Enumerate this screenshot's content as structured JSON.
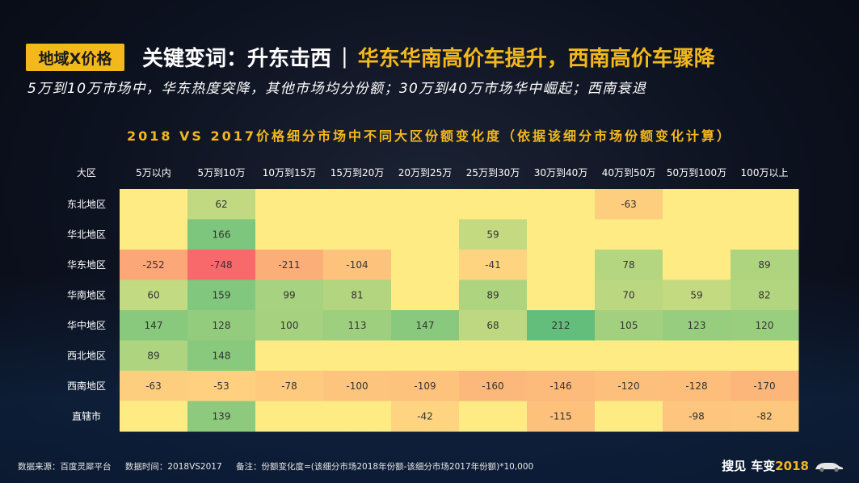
{
  "header": {
    "tag": "地域X价格",
    "keyword": "关键变词：升东击西",
    "divider": "|",
    "subtitle_highlight": "华东华南高价车提升，西南高价车骤降",
    "summary": "5万到10万市场中，华东热度突降，其他市场均分份额；30万到40万市场华中崛起；西南衰退"
  },
  "chart_data": {
    "type": "heatmap",
    "title": "2018 VS 2017价格细分市场中不同大区份额变化度（依据该细分市场份额变化计算）",
    "corner_label": "大区",
    "columns": [
      "5万以内",
      "5万到10万",
      "10万到15万",
      "15万到20万",
      "20万到25万",
      "25万到30万",
      "30万到40万",
      "40万到50万",
      "50万到100万",
      "100万以上"
    ],
    "rows": [
      "东北地区",
      "华北地区",
      "华东地区",
      "华南地区",
      "华中地区",
      "西北地区",
      "西南地区",
      "直辖市"
    ],
    "values": [
      [
        null,
        62,
        null,
        null,
        null,
        null,
        null,
        -63,
        null,
        null
      ],
      [
        null,
        166,
        null,
        null,
        null,
        59,
        null,
        null,
        null,
        null
      ],
      [
        -252,
        -748,
        -211,
        -104,
        null,
        -41,
        null,
        78,
        null,
        89
      ],
      [
        60,
        159,
        99,
        81,
        null,
        89,
        null,
        70,
        59,
        82
      ],
      [
        147,
        128,
        100,
        113,
        147,
        68,
        212,
        105,
        123,
        120
      ],
      [
        89,
        148,
        null,
        null,
        null,
        null,
        null,
        null,
        null,
        null
      ],
      [
        -63,
        -53,
        -78,
        -100,
        -109,
        -160,
        -146,
        -120,
        -128,
        -170
      ],
      [
        null,
        139,
        null,
        null,
        -42,
        null,
        -115,
        null,
        -98,
        -82
      ]
    ],
    "colors": {
      "low": "#f8696b",
      "mid": "#ffeb84",
      "high": "#63be7b",
      "label_text": "#333333",
      "header_text": "#ffffff"
    }
  },
  "footer": {
    "source": "数据来源：百度灵犀平台",
    "period": "数据时间：2018VS2017",
    "note": "备注：份额变化度=(该细分市场2018年份额-该细分市场2017年份额)*10,000"
  },
  "brand": {
    "part1": "搜见",
    "part2": "车变",
    "part3": "2018",
    "car_icon": "car-icon"
  }
}
